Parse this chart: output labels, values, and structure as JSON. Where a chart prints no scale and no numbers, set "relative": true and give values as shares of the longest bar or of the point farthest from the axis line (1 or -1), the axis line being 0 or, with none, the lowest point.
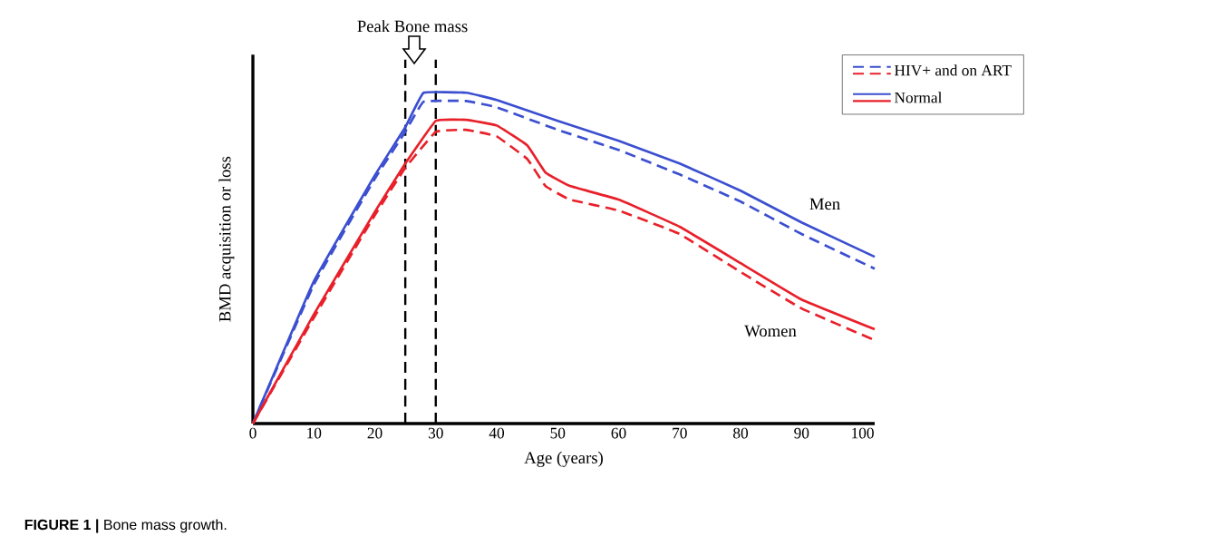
{
  "chart_data": {
    "type": "line",
    "relative": true,
    "xlabel": "Age (years)",
    "ylabel": "BMD acquisition or loss",
    "xlim": [
      0,
      102
    ],
    "xticks": [
      0,
      10,
      20,
      30,
      40,
      50,
      60,
      70,
      80,
      90,
      100
    ],
    "legend": "top right",
    "marker": "none",
    "series": [
      {
        "name": "HIV+ and on ART",
        "color": "#3b4fd0",
        "line_style": "dashed",
        "x": [
          0,
          10,
          20,
          25,
          28,
          35,
          40,
          50,
          60,
          70,
          80,
          90,
          102
        ],
        "values": [
          0,
          0.42,
          0.74,
          0.882,
          0.973,
          0.975,
          0.956,
          0.888,
          0.827,
          0.753,
          0.671,
          0.573,
          0.468
        ]
      },
      {
        "name": "Normal",
        "color": "#3b4fd0",
        "line_style": "solid",
        "x": [
          0,
          10,
          20,
          25,
          28,
          35,
          40,
          50,
          60,
          70,
          80,
          90,
          102
        ],
        "values": [
          0,
          0.43,
          0.75,
          0.896,
          1,
          1,
          0.978,
          0.915,
          0.855,
          0.786,
          0.704,
          0.608,
          0.504
        ]
      },
      {
        "color": "#e8202a",
        "line_style": "dashed",
        "x": [
          0,
          10,
          20,
          25,
          30,
          35,
          40,
          45,
          48,
          52,
          60,
          70,
          80,
          90,
          102
        ],
        "values": [
          0,
          0.32,
          0.63,
          0.773,
          0.882,
          0.888,
          0.868,
          0.8,
          0.718,
          0.677,
          0.644,
          0.573,
          0.458,
          0.348,
          0.252
        ]
      },
      {
        "color": "#e8202a",
        "line_style": "solid",
        "x": [
          0,
          10,
          20,
          25,
          30,
          35,
          40,
          45,
          48,
          52,
          60,
          70,
          80,
          90,
          102
        ],
        "values": [
          0,
          0.33,
          0.64,
          0.786,
          0.915,
          0.918,
          0.901,
          0.841,
          0.759,
          0.718,
          0.677,
          0.595,
          0.485,
          0.375,
          0.285
        ]
      }
    ],
    "ref_lines": [
      {
        "axis": "x",
        "value": 25,
        "color": "#000000",
        "line_style": "dashed"
      },
      {
        "axis": "x",
        "value": 30,
        "color": "#000000",
        "line_style": "dashed"
      }
    ],
    "annotations": [
      "Peak Bone mass",
      "Men",
      "Women",
      "**FIGURE 1 |** Bone mass growth."
    ]
  }
}
